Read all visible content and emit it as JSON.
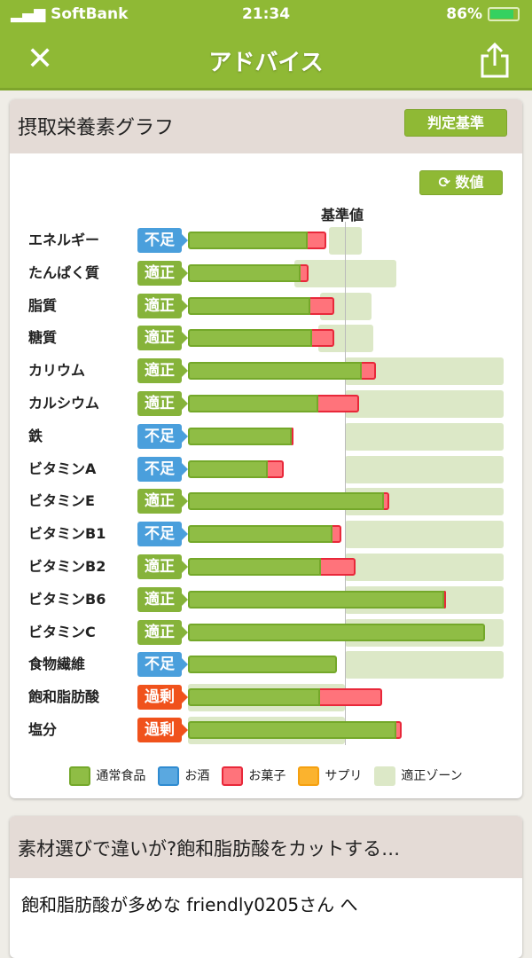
{
  "status_bar": {
    "carrier": "SoftBank",
    "time": "21:34",
    "battery": "86%",
    "battery_level": 0.86
  },
  "nav": {
    "title": "アドバイス",
    "close_icon": "close-icon",
    "share_icon": "share-icon"
  },
  "graph_card": {
    "title": "摂取栄養素グラフ",
    "judge_button": "判定基準",
    "value_button": "数値",
    "value_button_icon": "refresh-icon"
  },
  "colors": {
    "header": "#8fb935",
    "food": "#8fbd45",
    "alcohol": "#5aa8e0",
    "snack": "#ff737b",
    "supplement": "#fbb32e",
    "zone": "#dce8c7",
    "status_low": "#4a9fdc",
    "status_ok": "#86b33a",
    "status_high": "#f0521c"
  },
  "chart_data": {
    "type": "bar",
    "orientation": "horizontal-stacked",
    "reference_label": "基準値",
    "reference_value": 100,
    "xlim": [
      0,
      201
    ],
    "unit": "% of reference",
    "categories": [
      "エネルギー",
      "たんぱく質",
      "脂質",
      "糖質",
      "カリウム",
      "カルシウム",
      "鉄",
      "ビタミンA",
      "ビタミンE",
      "ビタミンB1",
      "ビタミンB2",
      "ビタミンB6",
      "ビタミンC",
      "食物繊維",
      "飽和脂肪酸",
      "塩分"
    ],
    "status": [
      "不足",
      "適正",
      "適正",
      "適正",
      "適正",
      "適正",
      "不足",
      "不足",
      "適正",
      "不足",
      "適正",
      "適正",
      "適正",
      "不足",
      "過剰",
      "過剰"
    ],
    "series": [
      {
        "name": "通常食品",
        "values": [
          76,
          72,
          78,
          79,
          111,
          83,
          66,
          51,
          125,
          92,
          85,
          163,
          189,
          95,
          84,
          133
        ]
      },
      {
        "name": "お菓子",
        "values": [
          12,
          5,
          15,
          14,
          9,
          26,
          1,
          10,
          3,
          6,
          22,
          1,
          0,
          0,
          40,
          3
        ]
      }
    ],
    "zones": [
      [
        90,
        111
      ],
      [
        68,
        133
      ],
      [
        84,
        117
      ],
      [
        83,
        118
      ],
      [
        100,
        201
      ],
      [
        100,
        201
      ],
      [
        100,
        201
      ],
      [
        100,
        201
      ],
      [
        100,
        201
      ],
      [
        100,
        201
      ],
      [
        100,
        201
      ],
      [
        100,
        201
      ],
      [
        100,
        201
      ],
      [
        100,
        201
      ],
      [
        0,
        100
      ],
      [
        0,
        100
      ]
    ],
    "legend": [
      "通常食品",
      "お酒",
      "お菓子",
      "サプリ",
      "適正ゾーン"
    ],
    "legend_placement": "bottom"
  },
  "article_card": {
    "title": "素材選びで違いが?飽和脂肪酸をカットする…",
    "body": "飽和脂肪酸が多めな friendly0205さん へ"
  }
}
